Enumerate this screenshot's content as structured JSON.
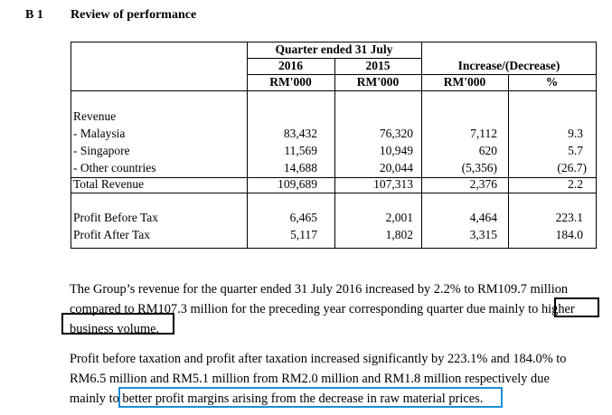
{
  "section": {
    "number": "B 1",
    "title": "Review of performance"
  },
  "table": {
    "period_header": "Quarter ended 31 July",
    "year_current": "2016",
    "year_prior": "2015",
    "change_header": "Increase/(Decrease)",
    "unit": "RM'000",
    "pct": "%",
    "rows": [
      {
        "label": "Revenue",
        "cur": "",
        "prior": "",
        "inc": "",
        "pct": ""
      },
      {
        "label": "- Malaysia",
        "cur": "83,432",
        "prior": "76,320",
        "inc": "7,112",
        "pct": "9.3"
      },
      {
        "label": "- Singapore",
        "cur": "11,569",
        "prior": "10,949",
        "inc": "620",
        "pct": "5.7"
      },
      {
        "label": "- Other countries",
        "cur": "14,688",
        "prior": "20,044",
        "inc": "(5,356)",
        "pct": "(26.7)"
      },
      {
        "label": "Total Revenue",
        "cur": "109,689",
        "prior": "107,313",
        "inc": "2,376",
        "pct": "2.2"
      },
      {
        "label": "Profit Before Tax",
        "cur": "6,465",
        "prior": "2,001",
        "inc": "4,464",
        "pct": "223.1"
      },
      {
        "label": "Profit After Tax",
        "cur": "5,117",
        "prior": "1,802",
        "inc": "3,315",
        "pct": "184.0"
      }
    ]
  },
  "para1": {
    "line1": "The Group’s revenue for the quarter ended 31 July 2016 increased by 2.2% to RM109.7 million",
    "line2_pre": "compared to RM107.3 million for the preceding year corresponding quarter due mainly to",
    "line2_hl": "higher",
    "line3_hl": "business volume."
  },
  "para2": {
    "line1": "Profit before taxation and profit after taxation increased significantly by 223.1% and 184.0% to",
    "line2": "RM6.5 million and RM5.1 million from RM2.0 million and RM1.8 million respectively due",
    "line3_pre": "mainly to",
    "line3_hl": "better profit margins arising from the decrease in raw material prices."
  }
}
